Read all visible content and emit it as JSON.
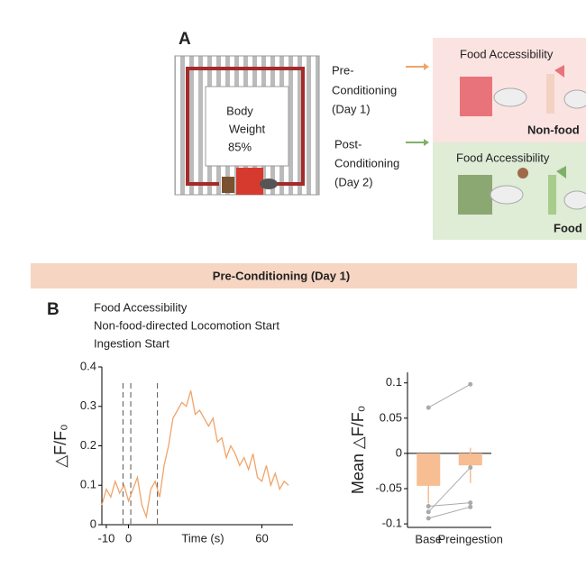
{
  "panel_a": {
    "label": "A",
    "maze_text": [
      "Body",
      "Weight",
      "85%"
    ],
    "pre": {
      "text": [
        "Pre-",
        "Conditioning",
        "(Day 1)"
      ],
      "title": "Food Accessibility",
      "caption": "Non-food"
    },
    "post": {
      "text": [
        "Post-",
        "Conditioning",
        "(Day 2)"
      ],
      "title": "Food Accessibility",
      "caption": "Food"
    }
  },
  "banner": "Pre-Conditioning (Day 1)",
  "panel_b": {
    "label": "B"
  },
  "chart_data": [
    {
      "type": "line",
      "xlabel": "Time (s)",
      "ylabel": "△F/F₀",
      "color": "#f0a46a",
      "events": [
        {
          "label": "Food Accessibility",
          "x": -2.5
        },
        {
          "label": "Non-food-directed Locomotion Start",
          "x": 1
        },
        {
          "label": "Ingestion Start",
          "x": 13
        }
      ],
      "x": [
        -12,
        -10,
        -8,
        -6,
        -4,
        -2,
        0,
        2,
        4,
        6,
        8,
        10,
        12,
        14,
        16,
        18,
        20,
        22,
        24,
        26,
        28,
        30,
        32,
        34,
        36,
        38,
        40,
        42,
        44,
        46,
        48,
        50,
        52,
        54,
        56,
        58,
        60,
        62,
        64,
        66,
        68,
        70,
        72
      ],
      "values": [
        0.05,
        0.09,
        0.07,
        0.11,
        0.08,
        0.1,
        0.06,
        0.09,
        0.12,
        0.05,
        0.02,
        0.09,
        0.11,
        0.07,
        0.15,
        0.2,
        0.27,
        0.29,
        0.31,
        0.3,
        0.34,
        0.28,
        0.29,
        0.27,
        0.25,
        0.27,
        0.21,
        0.22,
        0.17,
        0.2,
        0.18,
        0.15,
        0.17,
        0.14,
        0.18,
        0.12,
        0.11,
        0.15,
        0.1,
        0.13,
        0.09,
        0.11,
        0.1
      ],
      "xlim": [
        -12,
        74
      ],
      "xticks": [
        -10,
        0,
        60
      ],
      "ylim": [
        0,
        0.4
      ],
      "yticks": [
        0,
        0.1,
        0.2,
        0.3,
        0.4
      ]
    },
    {
      "type": "bar",
      "ylabel": "Mean △F/F₀",
      "categories": [
        "Base",
        "Preingestion"
      ],
      "color": "#f7bd93",
      "values": [
        -0.046,
        -0.017
      ],
      "errors": [
        0.025,
        0.025
      ],
      "points": [
        [
          0.065,
          0.098
        ],
        [
          -0.075,
          -0.07
        ],
        [
          -0.083,
          -0.02
        ],
        [
          -0.092,
          -0.076
        ]
      ],
      "point_color": "#aaaaaa",
      "ylim": [
        -0.105,
        0.115
      ],
      "yticks": [
        0.1,
        0.05,
        0,
        -0.05,
        -0.1
      ]
    }
  ]
}
